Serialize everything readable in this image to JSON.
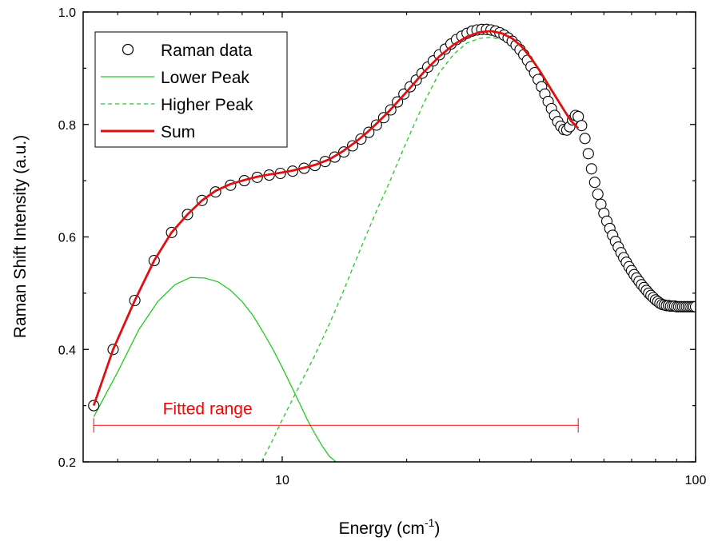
{
  "chart_data": {
    "type": "scatter",
    "xlabel": "Energy (cm",
    "xlabel_sup": "-1",
    "xlabel_tail": ")",
    "ylabel": "Raman Shift Intensity (a.u.)",
    "x_scale": "log",
    "xlim": [
      3.3,
      100
    ],
    "ylim": [
      0.2,
      1.0
    ],
    "x_ticks": [
      10,
      100
    ],
    "x_tick_labels": [
      "10",
      "100"
    ],
    "y_ticks": [
      0.2,
      0.4,
      0.6,
      0.8,
      1.0
    ],
    "y_tick_labels": [
      "0.2",
      "0.4",
      "0.6",
      "0.8",
      "1.0"
    ],
    "legend_position": "top-left",
    "colors": {
      "data": "#000000",
      "lower": "#22cc22",
      "higher": "#22cc22",
      "sum": "#dd1111",
      "annotation": "#ff0000"
    },
    "series": [
      {
        "name": "Raman data",
        "style": "open-circle",
        "x": [
          3.5,
          3.9,
          4.4,
          4.9,
          5.4,
          5.9,
          6.4,
          6.9,
          7.5,
          8.1,
          8.7,
          9.3,
          9.9,
          10.6,
          11.3,
          12.0,
          12.7,
          13.4,
          14.1,
          14.8,
          15.5,
          16.2,
          16.9,
          17.6,
          18.3,
          19.0,
          19.7,
          20.4,
          21.1,
          21.8,
          22.5,
          23.2,
          24.0,
          24.8,
          25.6,
          26.4,
          27.2,
          28.0,
          28.8,
          29.6,
          30.4,
          31.2,
          32.0,
          32.8,
          33.6,
          34.4,
          35.2,
          36.0,
          36.8,
          37.6,
          38.4,
          39.2,
          40.0,
          40.8,
          41.6,
          42.4,
          43.2,
          44.0,
          44.8,
          45.6,
          46.4,
          47.2,
          48.0,
          48.8,
          49.6,
          50.4,
          51.2,
          52.0,
          53.0,
          54.0,
          55.0,
          56.0,
          57.0,
          58.0,
          59.0,
          60.0,
          61.0,
          62.0,
          63.0,
          64.0,
          65.0,
          66.0,
          67.0,
          68.0,
          69.0,
          70.0,
          71.0,
          72.0,
          73.0,
          74.0,
          75.0,
          76.0,
          77.0,
          78.0,
          79.0,
          80.0,
          81.0,
          82.0,
          83.0,
          84.0,
          85.0,
          86.0,
          87.0,
          88.0,
          89.0,
          90.0,
          91.0,
          92.0,
          93.0,
          94.0,
          95.0,
          96.0,
          97.0,
          98.0,
          99.0,
          100.0
        ],
        "y": [
          0.3,
          0.4,
          0.487,
          0.558,
          0.608,
          0.64,
          0.665,
          0.68,
          0.692,
          0.7,
          0.706,
          0.71,
          0.713,
          0.717,
          0.722,
          0.727,
          0.734,
          0.742,
          0.751,
          0.762,
          0.774,
          0.786,
          0.799,
          0.812,
          0.826,
          0.84,
          0.854,
          0.867,
          0.879,
          0.891,
          0.902,
          0.913,
          0.924,
          0.934,
          0.943,
          0.951,
          0.957,
          0.962,
          0.966,
          0.968,
          0.969,
          0.969,
          0.968,
          0.966,
          0.963,
          0.959,
          0.954,
          0.948,
          0.941,
          0.933,
          0.924,
          0.914,
          0.903,
          0.892,
          0.88,
          0.867,
          0.854,
          0.841,
          0.828,
          0.816,
          0.805,
          0.797,
          0.791,
          0.79,
          0.796,
          0.808,
          0.816,
          0.814,
          0.798,
          0.775,
          0.748,
          0.721,
          0.697,
          0.676,
          0.658,
          0.642,
          0.628,
          0.615,
          0.603,
          0.592,
          0.582,
          0.572,
          0.563,
          0.555,
          0.547,
          0.54,
          0.533,
          0.527,
          0.521,
          0.515,
          0.51,
          0.505,
          0.5,
          0.496,
          0.492,
          0.488,
          0.485,
          0.482,
          0.48,
          0.479,
          0.478,
          0.478,
          0.477,
          0.477,
          0.477,
          0.476,
          0.476,
          0.476,
          0.476,
          0.476,
          0.476,
          0.476,
          0.476,
          0.476,
          0.476,
          0.476
        ]
      },
      {
        "name": "Lower Peak",
        "style": "solid-thin",
        "x": [
          3.5,
          4.0,
          4.5,
          5.0,
          5.5,
          6.0,
          6.5,
          7.0,
          7.5,
          8.0,
          8.5,
          9.0,
          9.5,
          10.0,
          10.5,
          11.0,
          11.5,
          12.0,
          12.5,
          13.0,
          13.5
        ],
        "y": [
          0.28,
          0.36,
          0.435,
          0.485,
          0.515,
          0.528,
          0.527,
          0.52,
          0.505,
          0.485,
          0.46,
          0.43,
          0.4,
          0.368,
          0.336,
          0.305,
          0.275,
          0.25,
          0.228,
          0.21,
          0.2
        ]
      },
      {
        "name": "Higher Peak",
        "style": "dashed-thin",
        "x": [
          8.9,
          9.5,
          10.0,
          11.0,
          12.0,
          13.0,
          14.0,
          15.0,
          16.0,
          17.0,
          18.0,
          20.0,
          22.0,
          24.0,
          26.0,
          28.0,
          30.0,
          32.0,
          34.0,
          36.0,
          38.0,
          40.0,
          42.0,
          44.0,
          46.0,
          48.0,
          50.0,
          52.0
        ],
        "y": [
          0.2,
          0.24,
          0.275,
          0.335,
          0.39,
          0.445,
          0.5,
          0.555,
          0.605,
          0.65,
          0.69,
          0.77,
          0.838,
          0.892,
          0.925,
          0.945,
          0.953,
          0.955,
          0.951,
          0.942,
          0.928,
          0.91,
          0.89,
          0.868,
          0.846,
          0.825,
          0.805,
          0.792
        ]
      },
      {
        "name": "Sum",
        "style": "solid-thick",
        "x": [
          3.5,
          3.9,
          4.4,
          4.9,
          5.4,
          5.9,
          6.4,
          6.9,
          7.5,
          8.1,
          8.7,
          9.3,
          9.9,
          10.6,
          11.3,
          12.0,
          13.0,
          14.0,
          15.0,
          16.0,
          17.0,
          18.0,
          20.0,
          22.0,
          24.0,
          26.0,
          28.0,
          30.0,
          32.0,
          34.0,
          36.0,
          38.0,
          40.0,
          42.0,
          44.0,
          46.0,
          48.0,
          50.0,
          52.0
        ],
        "y": [
          0.3,
          0.4,
          0.487,
          0.558,
          0.608,
          0.64,
          0.665,
          0.682,
          0.694,
          0.701,
          0.707,
          0.711,
          0.714,
          0.718,
          0.723,
          0.728,
          0.738,
          0.752,
          0.768,
          0.785,
          0.803,
          0.821,
          0.858,
          0.893,
          0.921,
          0.942,
          0.956,
          0.964,
          0.966,
          0.962,
          0.953,
          0.938,
          0.918,
          0.895,
          0.871,
          0.848,
          0.826,
          0.806,
          0.793
        ]
      }
    ],
    "annotation": {
      "text": "Fitted range",
      "x_from": 3.5,
      "x_to": 52.0,
      "y": 0.265
    }
  }
}
